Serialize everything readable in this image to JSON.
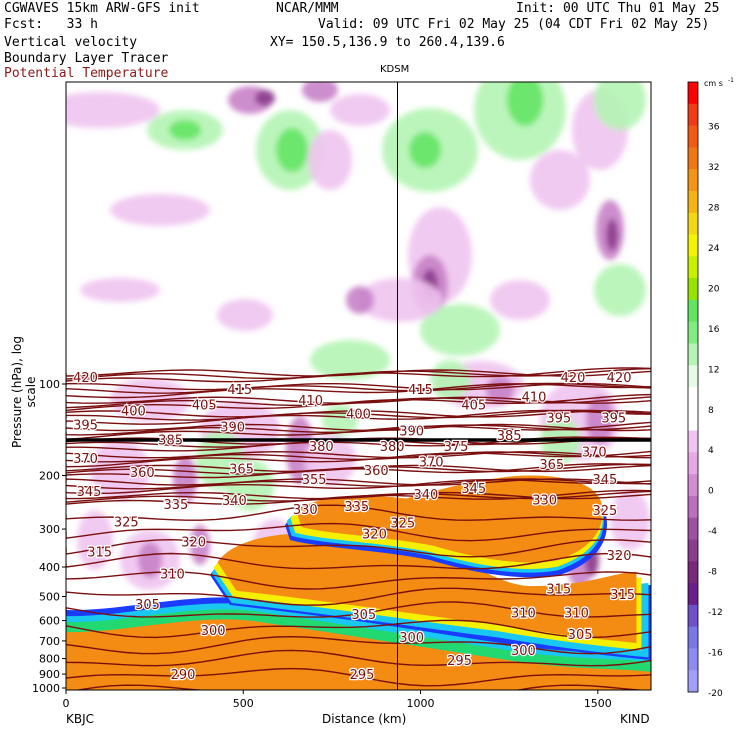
{
  "header": {
    "line1": "CGWAVES 15km ARW-GFS init",
    "line2": "Fcst:   33 h",
    "line3": "Vertical velocity",
    "line4": "Boundary Layer Tracer",
    "line5": "Potential Temperature",
    "center": "NCAR/MMM",
    "init": "Init: 00 UTC Thu 01 May 25",
    "valid": "Valid: 09 UTC Fri 02 May 25 (04 CDT Fri 02 May 25)",
    "xy": "XY= 150.5,136.9 to 260.4,139.6"
  },
  "colors": {
    "theta_contour": "#7a0f0f",
    "tracer": [
      "#1a3cff",
      "#18c8f0",
      "#22d870",
      "#f4f000",
      "#f48c14"
    ],
    "up_light": "#b4f4b4",
    "up_mid": "#64e464",
    "down_light": "#f0c4f0",
    "down_mid": "#c882c8",
    "down_dark": "#8c3c8c"
  },
  "chart_data": {
    "type": "heatmap",
    "marker_label": "KDSM",
    "marker_x_km": 935,
    "xlabel": "Distance (km)",
    "ylabel": "Pressure (hPa), log scale",
    "x_left_label": "KBJC",
    "x_right_label": "KIND",
    "xlim": [
      0,
      1650
    ],
    "x_ticks": [
      0,
      500,
      1000,
      1500
    ],
    "y_scale": "log",
    "y_ticks": [
      100,
      200,
      300,
      400,
      500,
      600,
      700,
      800,
      900,
      1000
    ],
    "colorbar": {
      "unit": "cm s",
      "unit_exp": "-1",
      "labels": [
        36,
        32,
        28,
        24,
        20,
        16,
        12,
        8,
        4,
        0,
        -4,
        -8,
        -12,
        -16,
        -20
      ],
      "colors": [
        "#ff0000",
        "#f03c14",
        "#f05a14",
        "#f07814",
        "#f49614",
        "#f4b414",
        "#f4d814",
        "#f4f400",
        "#c8f000",
        "#96e400",
        "#64e464",
        "#82ec82",
        "#b4f4b4",
        "#e6fae6",
        "#ffffff",
        "#ffffff",
        "#f0c4f0",
        "#e6a8e6",
        "#d28cd2",
        "#be6ebe",
        "#a050a0",
        "#8c3c8c",
        "#7a287a",
        "#6a1e8c",
        "#6e50c8",
        "#7878e6",
        "#8c8cf0",
        "#a0a0fa"
      ]
    },
    "theta_labels": [
      {
        "label": "420",
        "x_km": 55,
        "p": 95
      },
      {
        "label": "420",
        "x_km": 1430,
        "p": 95
      },
      {
        "label": "420",
        "x_km": 1560,
        "p": 95
      },
      {
        "label": "415",
        "x_km": 490,
        "p": 104
      },
      {
        "label": "415",
        "x_km": 1000,
        "p": 104
      },
      {
        "label": "410",
        "x_km": 690,
        "p": 113
      },
      {
        "label": "410",
        "x_km": 1320,
        "p": 110
      },
      {
        "label": "405",
        "x_km": 390,
        "p": 117
      },
      {
        "label": "405",
        "x_km": 1150,
        "p": 117
      },
      {
        "label": "400",
        "x_km": 190,
        "p": 122
      },
      {
        "label": "400",
        "x_km": 825,
        "p": 125
      },
      {
        "label": "395",
        "x_km": 55,
        "p": 136
      },
      {
        "label": "395",
        "x_km": 1390,
        "p": 129
      },
      {
        "label": "395",
        "x_km": 1545,
        "p": 129
      },
      {
        "label": "390",
        "x_km": 470,
        "p": 138
      },
      {
        "label": "390",
        "x_km": 975,
        "p": 142
      },
      {
        "label": "385",
        "x_km": 295,
        "p": 152
      },
      {
        "label": "385",
        "x_km": 1250,
        "p": 147
      },
      {
        "label": "380",
        "x_km": 920,
        "p": 160
      },
      {
        "label": "380",
        "x_km": 720,
        "p": 160
      },
      {
        "label": "375",
        "x_km": 1100,
        "p": 160
      },
      {
        "label": "370",
        "x_km": 55,
        "p": 175
      },
      {
        "label": "370",
        "x_km": 1030,
        "p": 180
      },
      {
        "label": "370",
        "x_km": 1490,
        "p": 167
      },
      {
        "label": "365",
        "x_km": 495,
        "p": 190
      },
      {
        "label": "365",
        "x_km": 1370,
        "p": 183
      },
      {
        "label": "360",
        "x_km": 215,
        "p": 195
      },
      {
        "label": "360",
        "x_km": 875,
        "p": 192
      },
      {
        "label": "355",
        "x_km": 700,
        "p": 205
      },
      {
        "label": "345",
        "x_km": 65,
        "p": 225
      },
      {
        "label": "345",
        "x_km": 1150,
        "p": 220
      },
      {
        "label": "345",
        "x_km": 1520,
        "p": 205
      },
      {
        "label": "340",
        "x_km": 475,
        "p": 241
      },
      {
        "label": "340",
        "x_km": 1015,
        "p": 230
      },
      {
        "label": "335",
        "x_km": 310,
        "p": 248
      },
      {
        "label": "335",
        "x_km": 820,
        "p": 252
      },
      {
        "label": "330",
        "x_km": 675,
        "p": 258
      },
      {
        "label": "330",
        "x_km": 1350,
        "p": 240
      },
      {
        "label": "325",
        "x_km": 170,
        "p": 283
      },
      {
        "label": "325",
        "x_km": 950,
        "p": 285
      },
      {
        "label": "325",
        "x_km": 1520,
        "p": 260
      },
      {
        "label": "320",
        "x_km": 360,
        "p": 330
      },
      {
        "label": "320",
        "x_km": 870,
        "p": 310
      },
      {
        "label": "320",
        "x_km": 1560,
        "p": 365
      },
      {
        "label": "315",
        "x_km": 95,
        "p": 355
      },
      {
        "label": "315",
        "x_km": 1390,
        "p": 470
      },
      {
        "label": "315",
        "x_km": 1570,
        "p": 490
      },
      {
        "label": "310",
        "x_km": 300,
        "p": 420
      },
      {
        "label": "310",
        "x_km": 1290,
        "p": 565
      },
      {
        "label": "310",
        "x_km": 1440,
        "p": 565
      },
      {
        "label": "305",
        "x_km": 230,
        "p": 530
      },
      {
        "label": "305",
        "x_km": 840,
        "p": 570
      },
      {
        "label": "305",
        "x_km": 1450,
        "p": 665
      },
      {
        "label": "300",
        "x_km": 415,
        "p": 645
      },
      {
        "label": "300",
        "x_km": 975,
        "p": 680
      },
      {
        "label": "300",
        "x_km": 1290,
        "p": 750
      },
      {
        "label": "295",
        "x_km": 835,
        "p": 900
      },
      {
        "label": "295",
        "x_km": 1110,
        "p": 810
      },
      {
        "label": "290",
        "x_km": 330,
        "p": 900
      }
    ]
  }
}
